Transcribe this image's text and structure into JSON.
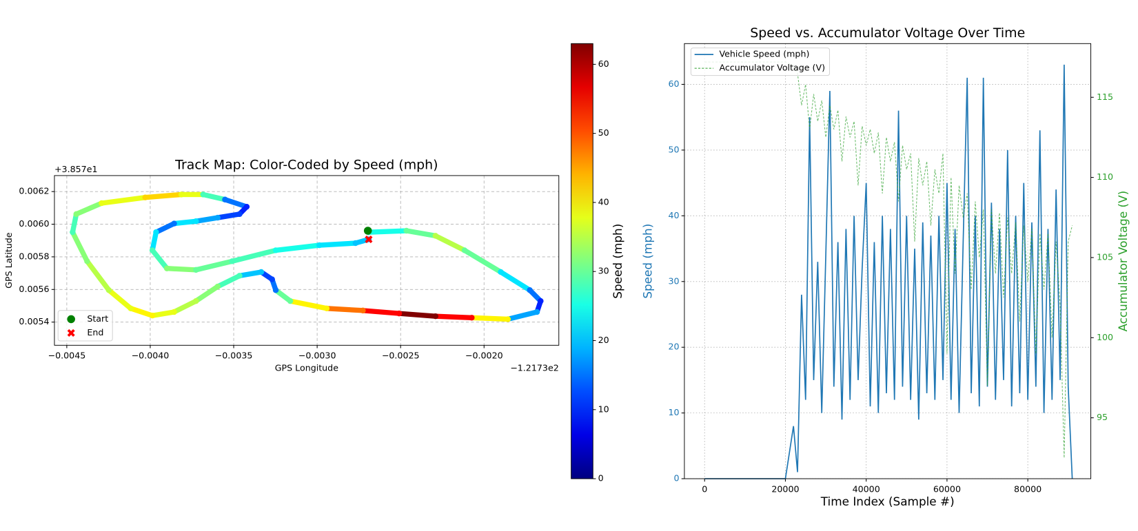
{
  "chart_data": [
    {
      "type": "scatter",
      "title": "Track Map: Color-Coded by Speed (mph)",
      "x_label": "GPS Longitude",
      "y_label": "GPS Latitude",
      "x_offset": "−1.2173e2",
      "y_offset": "+3.857e1",
      "x": [
        -0.002691,
        -0.002465,
        -0.002291,
        -0.002117,
        -0.0019,
        -0.001726,
        -0.001661,
        -0.001683,
        -0.001857,
        -0.002074,
        -0.002291,
        -0.002509,
        -0.002726,
        -0.002943,
        -0.003161,
        -0.003248,
        -0.00327,
        -0.003335,
        -0.003465,
        -0.003596,
        -0.003726,
        -0.003857,
        -0.003987,
        -0.004117,
        -0.004248,
        -0.004378,
        -0.004465,
        -0.004443,
        -0.004291,
        -0.00403,
        -0.003813,
        -0.003683,
        -0.003552,
        -0.003422,
        -0.003465,
        -0.003596,
        -0.003726,
        -0.003857,
        -0.003965,
        -0.003987,
        -0.0039,
        -0.003726,
        -0.003509,
        -0.003248,
        -0.002987,
        -0.00277,
        -0.002691
      ],
      "y": [
        0.005951,
        0.00596,
        0.005929,
        0.00584,
        0.005707,
        0.005596,
        0.005529,
        0.005462,
        0.005418,
        0.005427,
        0.005436,
        0.005453,
        0.005471,
        0.005484,
        0.005529,
        0.005596,
        0.005662,
        0.005707,
        0.005684,
        0.005618,
        0.005529,
        0.005462,
        0.00544,
        0.005484,
        0.005596,
        0.005773,
        0.005951,
        0.006062,
        0.006129,
        0.006164,
        0.006182,
        0.006182,
        0.006151,
        0.006107,
        0.006062,
        0.00604,
        0.006018,
        0.006004,
        0.005951,
        0.00584,
        0.005729,
        0.00572,
        0.005773,
        0.00584,
        0.005871,
        0.005884,
        0.005907
      ],
      "speed": [
        25,
        30,
        35,
        30,
        22,
        15,
        10,
        18,
        40,
        55,
        63,
        55,
        48,
        40,
        30,
        15,
        12,
        20,
        28,
        32,
        35,
        38,
        40,
        38,
        35,
        32,
        28,
        32,
        38,
        42,
        38,
        28,
        15,
        10,
        12,
        18,
        22,
        15,
        22,
        28,
        32,
        30,
        28,
        25,
        22,
        20,
        18
      ],
      "colormap": "jet",
      "xlim": [
        -0.004574,
        -0.001552
      ],
      "ylim": [
        0.005258,
        0.006298
      ],
      "xticks": [
        {
          "value": -0.0045,
          "label": "−0.0045"
        },
        {
          "value": -0.004,
          "label": "−0.0040"
        },
        {
          "value": -0.0035,
          "label": "−0.0035"
        },
        {
          "value": -0.003,
          "label": "−0.0030"
        },
        {
          "value": -0.0025,
          "label": "−0.0025"
        },
        {
          "value": -0.002,
          "label": "−0.0020"
        }
      ],
      "yticks": [
        0.0054,
        0.0056,
        0.0058,
        {
          "value": 0.006,
          "label": "0.0060"
        },
        0.0062
      ],
      "grid": true,
      "legend": "lower left",
      "markers": [
        {
          "name": "Start",
          "x": -0.002696,
          "y": 0.00596,
          "color": "#008000",
          "shape": "circle"
        },
        {
          "name": "End",
          "x": -0.002691,
          "y": 0.005907,
          "color": "#ff0000",
          "shape": "x"
        }
      ],
      "colorbar": {
        "label": "Speed (mph)",
        "lim": [
          0,
          63
        ],
        "ticks": [
          0,
          10,
          20,
          30,
          40,
          50,
          60
        ]
      }
    },
    {
      "type": "line",
      "title": "Speed vs. Accumulator Voltage Over Time",
      "x_label": "Time Index (Sample #)",
      "y_label": "Speed (mph)",
      "y2_label": "Accumulator Voltage (V)",
      "x": [
        0,
        5000,
        10000,
        15000,
        20000,
        22000,
        23000,
        24000,
        25000,
        26000,
        27000,
        28000,
        29000,
        30000,
        31000,
        32000,
        33000,
        34000,
        35000,
        36000,
        37000,
        38000,
        39000,
        40000,
        41000,
        42000,
        43000,
        44000,
        45000,
        46000,
        47000,
        48000,
        49000,
        50000,
        51000,
        52000,
        53000,
        54000,
        55000,
        56000,
        57000,
        58000,
        59000,
        60000,
        61000,
        62000,
        63000,
        64000,
        65000,
        66000,
        67000,
        68000,
        69000,
        70000,
        71000,
        72000,
        73000,
        74000,
        75000,
        76000,
        77000,
        78000,
        79000,
        80000,
        81000,
        82000,
        83000,
        84000,
        85000,
        86000,
        87000,
        88000,
        89000,
        90000,
        91000
      ],
      "series": [
        {
          "name": "Vehicle Speed (mph)",
          "color": "#1f77b4",
          "values": [
            0,
            0,
            0,
            0,
            0,
            8,
            1,
            28,
            12,
            55,
            15,
            33,
            10,
            34,
            59,
            14,
            36,
            9,
            38,
            12,
            40,
            15,
            32,
            45,
            11,
            36,
            10,
            40,
            13,
            38,
            12,
            56,
            14,
            40,
            12,
            35,
            9,
            39,
            13,
            37,
            12,
            40,
            15,
            45,
            12,
            38,
            10,
            36,
            61,
            13,
            40,
            11,
            61,
            14,
            42,
            12,
            38,
            15,
            50,
            11,
            40,
            13,
            45,
            12,
            39,
            14,
            53,
            10,
            38,
            12,
            44,
            15,
            63,
            14,
            0
          ]
        },
        {
          "name": "Accumulator Voltage (V)",
          "color": "#2ca02c",
          "axis": "y2",
          "dashed": true,
          "values": [
            117.2,
            117.2,
            117.2,
            117.2,
            117.2,
            117,
            116.5,
            114.5,
            115.8,
            113,
            115.2,
            113.5,
            114.8,
            112.5,
            114.5,
            113,
            114.2,
            111,
            113.8,
            112.5,
            113.5,
            109.5,
            113.2,
            112,
            113,
            111.5,
            112.8,
            109,
            112.5,
            111,
            112.2,
            108.5,
            112,
            110.5,
            111.5,
            106,
            111.2,
            109.5,
            111,
            107,
            110.5,
            109,
            111.5,
            99,
            110,
            104,
            109.5,
            107.5,
            109,
            103,
            108.5,
            105,
            108,
            97,
            108,
            104,
            107.8,
            102.5,
            107.5,
            104,
            107.2,
            101,
            107,
            103.5,
            106.8,
            99,
            106.5,
            103,
            106.5,
            100,
            106,
            102,
            92.5,
            106,
            107
          ]
        }
      ],
      "xlim": [
        -5000,
        95600
      ],
      "ylim": [
        0,
        66.2
      ],
      "y2lim": [
        91.2,
        118.35
      ],
      "xticks": [
        0,
        20000,
        40000,
        60000,
        80000
      ],
      "yticks": [
        0,
        10,
        20,
        30,
        40,
        50,
        60
      ],
      "y2ticks": [
        95,
        100,
        105,
        110,
        115
      ],
      "grid": true,
      "legend": "upper left"
    }
  ]
}
